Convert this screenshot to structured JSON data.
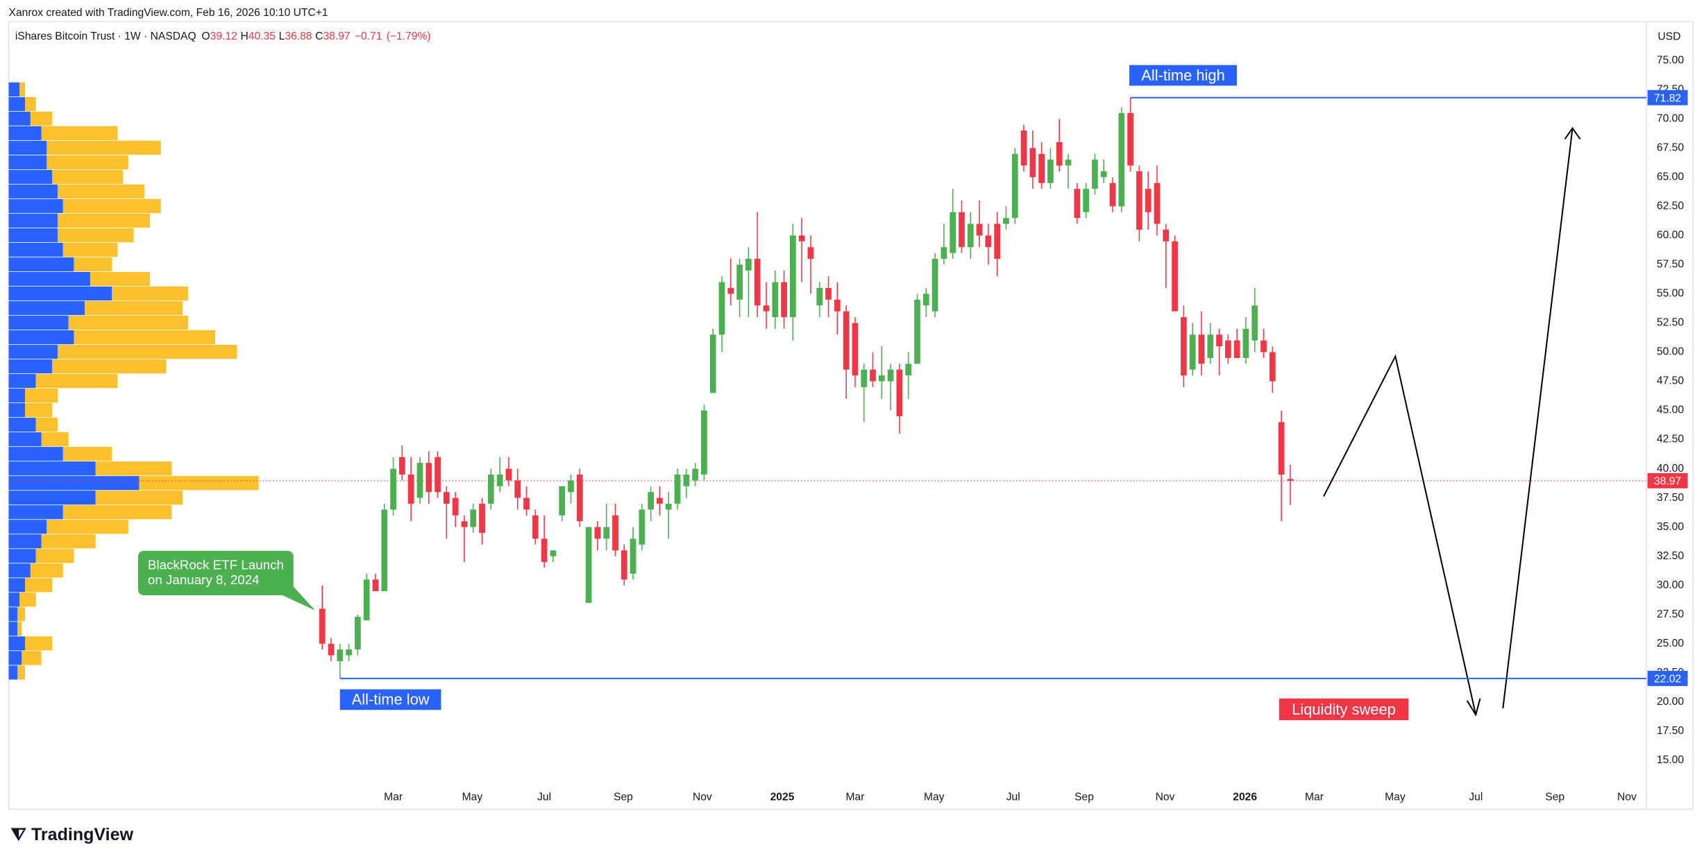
{
  "header": {
    "credit": "Xanrox created with TradingView.com, Feb 16, 2026 10:10 UTC+1",
    "symbol": "iShares Bitcoin Trust · 1W · NASDAQ",
    "o": "O",
    "open": 39.12,
    "h": "H",
    "high": 40.35,
    "l": "L",
    "low": 36.88,
    "c": "C",
    "close": 38.97,
    "change": {
      "value": -0.71,
      "label": "−0.71"
    },
    "change_pct": {
      "value": -1.79,
      "label": "(−1.79%)"
    },
    "currency": "USD"
  },
  "logo": "TradingView",
  "chart_data": {
    "type": "candlestick",
    "up_color": "#4caf50",
    "down_color": "#f23645",
    "grid": false,
    "open": [
      28,
      25,
      23.5,
      24,
      24.5,
      27,
      30.5,
      29.5,
      36.5,
      41,
      39.5,
      37.5,
      40.5,
      41,
      38,
      37.5,
      35.5,
      35,
      37,
      37,
      38.5,
      40,
      39,
      37.5,
      36,
      34,
      32.5,
      36,
      38,
      39.5,
      28.5,
      35,
      34,
      36,
      33,
      31,
      33.5,
      36.5,
      37.5,
      36.5,
      37,
      38.5,
      39,
      39.5,
      46.5,
      51.5,
      55.5,
      54.5,
      57,
      58,
      54,
      53,
      56,
      53,
      60,
      59,
      54,
      55.5,
      54.5,
      53.5,
      52.5,
      47,
      48.5,
      47.5,
      47.5,
      48.5,
      48,
      49,
      54,
      53.5,
      58,
      58.5,
      62,
      59,
      61,
      60,
      61,
      61,
      61.5,
      69,
      67.5,
      67,
      64.5,
      68,
      66,
      64,
      62,
      64,
      65,
      64.5,
      62.5,
      70.5,
      65.5,
      64,
      64.5,
      60.5,
      59.5,
      53,
      48.5,
      51.5,
      49.5,
      51.5,
      51,
      51,
      49.5,
      51,
      51,
      50,
      44,
      39.12
    ],
    "high": [
      30,
      25.5,
      25,
      25,
      27.5,
      31,
      31,
      37,
      41,
      42,
      41,
      41,
      41.5,
      41.5,
      38.5,
      38,
      36,
      37,
      37.5,
      40,
      41,
      41,
      40,
      38.5,
      36.5,
      36,
      33,
      38.5,
      39.5,
      40,
      35,
      35.5,
      37,
      37,
      33.5,
      35,
      37,
      38.5,
      38.5,
      38,
      40,
      40,
      40.5,
      45.5,
      52,
      56.5,
      58,
      58,
      59,
      62,
      56,
      57,
      57,
      61,
      61.5,
      60,
      56,
      56.5,
      56,
      54,
      53,
      49,
      50,
      50.5,
      49,
      49,
      50,
      55,
      55.5,
      58.5,
      61,
      64,
      63,
      62,
      63,
      61,
      62,
      62.5,
      67.5,
      69.5,
      69,
      68,
      67.5,
      70,
      67,
      64.5,
      64.5,
      67,
      66.5,
      65,
      71,
      71.82,
      66,
      65.5,
      66,
      61,
      60,
      54,
      52.5,
      53.5,
      52.5,
      52,
      51.5,
      52,
      53,
      55.5,
      52,
      50.5,
      45,
      40.35
    ],
    "low": [
      24.5,
      23.5,
      22.02,
      23.5,
      24,
      27,
      29.5,
      29.5,
      36,
      39,
      35.5,
      37,
      37,
      37.5,
      34,
      35,
      32,
      34.5,
      33.5,
      36.5,
      38,
      38.5,
      36.5,
      36,
      33.5,
      31.5,
      32,
      35.5,
      37,
      35,
      28.5,
      33,
      33,
      32.5,
      30,
      30.5,
      33,
      35.5,
      36,
      34,
      36.5,
      37.5,
      38.5,
      39,
      46.5,
      50,
      54,
      53,
      53,
      53,
      52,
      52,
      52,
      51,
      56,
      55,
      53,
      53,
      51.5,
      46,
      47,
      44,
      47,
      46,
      45,
      43,
      46,
      49,
      53,
      53,
      57.5,
      58,
      58.5,
      58,
      59,
      57.5,
      56.5,
      60.5,
      61,
      65.5,
      64,
      64,
      64,
      65.5,
      64,
      61,
      61.5,
      63.5,
      64.5,
      62,
      62,
      65.5,
      59.5,
      60.5,
      60,
      55.5,
      53.5,
      47,
      48,
      48,
      49,
      48,
      49,
      49.5,
      49,
      50,
      49.5,
      46.5,
      35.5,
      36.88
    ],
    "close": [
      25,
      24,
      24.5,
      24.5,
      27.3,
      30.5,
      29.5,
      36.5,
      40,
      39.5,
      37,
      40.5,
      38,
      38,
      37,
      36,
      35,
      36.5,
      34.5,
      39.5,
      39.5,
      39,
      37.5,
      36.5,
      34,
      32,
      33,
      38.5,
      39,
      35.5,
      35,
      34,
      35,
      33,
      30.5,
      34,
      36.5,
      38,
      37,
      37,
      39.5,
      39.5,
      40,
      45,
      51.5,
      56,
      55,
      57.5,
      58,
      54,
      53.5,
      56,
      53,
      60,
      59.5,
      58,
      55.5,
      54.5,
      53.5,
      48.5,
      48,
      48.5,
      47.5,
      48,
      48.5,
      44.5,
      49,
      54.5,
      55,
      58,
      59,
      62,
      59,
      61,
      60,
      59,
      58,
      61.5,
      67,
      66,
      65,
      64.5,
      66.5,
      66,
      66.5,
      61.5,
      64,
      66.5,
      65.5,
      62.5,
      70.5,
      66,
      60.5,
      62,
      61,
      59.5,
      53.5,
      48,
      51.5,
      49,
      51.5,
      50.5,
      49.5,
      49.5,
      52,
      54,
      50,
      47.5,
      39.5,
      38.97
    ],
    "xlim": [
      -35.3,
      149.1
    ],
    "xticks": [
      {
        "value": 8,
        "label": "Mar"
      },
      {
        "value": 16.9,
        "label": "May"
      },
      {
        "value": 25,
        "label": "Jul"
      },
      {
        "value": 33.9,
        "label": "Sep"
      },
      {
        "value": 42.8,
        "label": "Nov"
      },
      {
        "value": 51.8,
        "label": "2025"
      },
      {
        "value": 60,
        "label": "Mar"
      },
      {
        "value": 68.9,
        "label": "May"
      },
      {
        "value": 77.8,
        "label": "Jul"
      },
      {
        "value": 85.8,
        "label": "Sep"
      },
      {
        "value": 94.9,
        "label": "Nov"
      },
      {
        "value": 103.9,
        "label": "2026"
      },
      {
        "value": 111.7,
        "label": "Mar"
      },
      {
        "value": 120.8,
        "label": "May"
      },
      {
        "value": 129.9,
        "label": "Jul"
      },
      {
        "value": 138.8,
        "label": "Sep"
      },
      {
        "value": 146.9,
        "label": "Nov"
      }
    ],
    "ylim": [
      10.8,
      76
    ],
    "yticks": [
      {
        "value": 15,
        "label": "15.00"
      },
      {
        "value": 17.5,
        "label": "17.50"
      },
      {
        "value": 20,
        "label": "20.00"
      },
      {
        "value": 22.5,
        "label": "22.50"
      },
      {
        "value": 25,
        "label": "25.00"
      },
      {
        "value": 27.5,
        "label": "27.50"
      },
      {
        "value": 30,
        "label": "30.00"
      },
      {
        "value": 32.5,
        "label": "32.50"
      },
      {
        "value": 35,
        "label": "35.00"
      },
      {
        "value": 37.5,
        "label": "37.50"
      },
      {
        "value": 40,
        "label": "40.00"
      },
      {
        "value": 42.5,
        "label": "42.50"
      },
      {
        "value": 45,
        "label": "45.00"
      },
      {
        "value": 47.5,
        "label": "47.50"
      },
      {
        "value": 50,
        "label": "50.00"
      },
      {
        "value": 52.5,
        "label": "52.50"
      },
      {
        "value": 55,
        "label": "55.00"
      },
      {
        "value": 57.5,
        "label": "57.50"
      },
      {
        "value": 60,
        "label": "60.00"
      },
      {
        "value": 62.5,
        "label": "62.50"
      },
      {
        "value": 65,
        "label": "65.00"
      },
      {
        "value": 67.5,
        "label": "67.50"
      },
      {
        "value": 70,
        "label": "70.00"
      },
      {
        "value": 72.5,
        "label": "72.50"
      },
      {
        "value": 75,
        "label": "75.00"
      }
    ],
    "volume_profile": {
      "colors": [
        "#2962ff",
        "#fbc02d"
      ],
      "prices": [
        72.5,
        71.25,
        70,
        68.75,
        67.5,
        66.25,
        65,
        63.75,
        62.5,
        61.25,
        60,
        58.75,
        57.5,
        56.25,
        55,
        53.75,
        52.5,
        51.25,
        50,
        48.75,
        47.5,
        46.25,
        45,
        43.75,
        42.5,
        41.25,
        40,
        38.75,
        37.5,
        36.25,
        35,
        33.75,
        32.5,
        31.25,
        30,
        28.75,
        27.5,
        26.25,
        25,
        23.75,
        22.5
      ],
      "blue": [
        10,
        15,
        20,
        30,
        35,
        35,
        40,
        45,
        50,
        45,
        45,
        50,
        60,
        75,
        95,
        70,
        55,
        60,
        45,
        40,
        25,
        15,
        15,
        25,
        30,
        50,
        80,
        120,
        80,
        50,
        35,
        30,
        25,
        20,
        15,
        10,
        8,
        8,
        15,
        12,
        8
      ],
      "yellow": [
        5,
        10,
        20,
        70,
        105,
        75,
        65,
        80,
        90,
        85,
        70,
        50,
        35,
        55,
        70,
        90,
        110,
        130,
        165,
        105,
        75,
        30,
        25,
        20,
        25,
        45,
        70,
        110,
        80,
        100,
        75,
        50,
        35,
        30,
        25,
        15,
        7,
        4,
        25,
        18,
        7
      ]
    },
    "annotations": {
      "ath": {
        "label": "All-time high",
        "price": 71.82
      },
      "atl": {
        "label": "All-time low",
        "price": 22.02
      },
      "current_price": 38.97,
      "launch": [
        "BlackRock ETF Launch",
        "on January 8, 2024"
      ],
      "sweep": "Liquidity sweep"
    }
  }
}
